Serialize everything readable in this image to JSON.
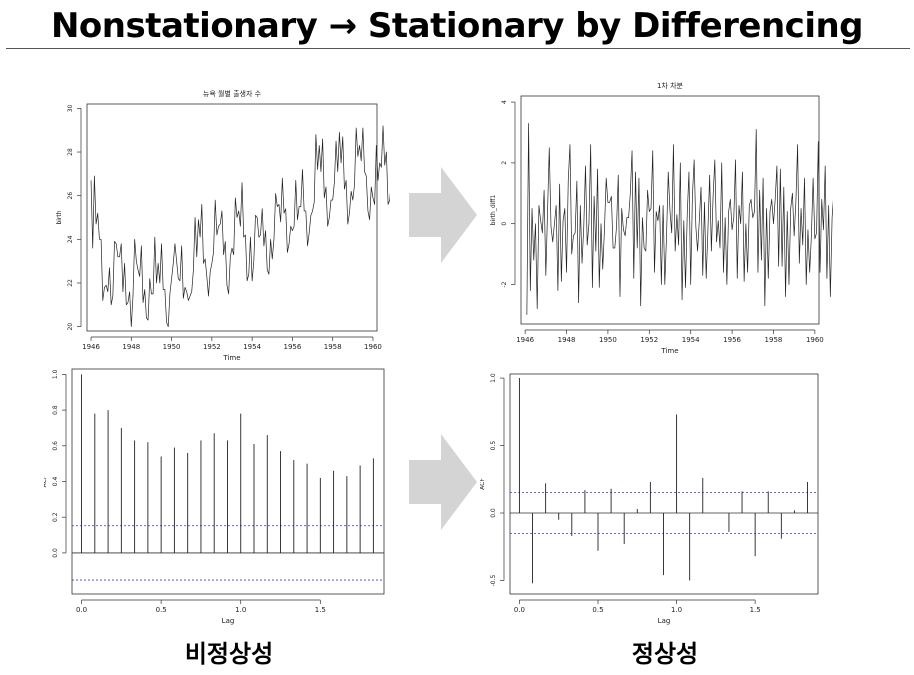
{
  "slide": {
    "title": "Nonstationary → Stationary by Differencing",
    "caption_left": "비정상성",
    "caption_right": "정상성"
  },
  "colors": {
    "series_line": "#222222",
    "ci_line": "#3b3bcc",
    "arrow_fill": "#d4d4d4",
    "frame": "#333333"
  },
  "chart_data": [
    {
      "id": "birth",
      "type": "line",
      "title": "뉴욕 월별 출생자 수",
      "xlabel": "Time",
      "ylabel": "birth",
      "xlim": [
        1945.8,
        1960.2
      ],
      "ylim": [
        19.8,
        30.2
      ],
      "xticks": [
        1946,
        1948,
        1950,
        1952,
        1954,
        1956,
        1958,
        1960
      ],
      "yticks": [
        20,
        22,
        24,
        26,
        28,
        30
      ],
      "x_start": 1946.0,
      "x_step": 0.08333,
      "series": [
        {
          "values": [
            26.7,
            23.6,
            26.9,
            24.7,
            25.2,
            24.0,
            24.0,
            21.2,
            21.8,
            21.9,
            21.6,
            22.7,
            21.0,
            21.4,
            23.9,
            23.8,
            23.2,
            23.2,
            23.8,
            21.6,
            22.9,
            21.0,
            21.1,
            21.6,
            20.0,
            21.4,
            24.0,
            23.0,
            22.6,
            22.3,
            23.7,
            21.1,
            21.7,
            20.4,
            20.3,
            22.2,
            21.5,
            21.5,
            24.1,
            22.0,
            22.9,
            22.0,
            23.8,
            21.7,
            21.7,
            20.2,
            20.0,
            21.5,
            22.2,
            22.9,
            23.8,
            23.0,
            22.2,
            22.1,
            23.7,
            21.3,
            21.8,
            21.6,
            21.2,
            21.4,
            21.6,
            22.6,
            25.0,
            23.2,
            24.9,
            24.1,
            25.6,
            22.9,
            23.1,
            22.3,
            21.4,
            22.5,
            22.9,
            23.4,
            25.8,
            24.2,
            24.6,
            24.7,
            25.3,
            23.3,
            23.9,
            21.9,
            21.5,
            23.2,
            23.6,
            23.3,
            25.9,
            25.0,
            25.3,
            24.6,
            26.6,
            24.1,
            24.2,
            22.1,
            22.4,
            24.1,
            22.1,
            23.0,
            25.1,
            25.0,
            24.1,
            24.2,
            25.4,
            23.7,
            24.4,
            22.6,
            22.4,
            24.0,
            23.1,
            24.0,
            26.1,
            25.5,
            25.6,
            24.8,
            26.8,
            25.2,
            25.4,
            23.4,
            23.8,
            24.6,
            24.4,
            24.6,
            26.7,
            24.9,
            25.5,
            25.5,
            27.2,
            25.3,
            25.3,
            23.7,
            24.3,
            25.1,
            25.3,
            25.7,
            28.8,
            27.2,
            28.3,
            27.1,
            28.6,
            25.9,
            26.4,
            24.6,
            25.0,
            25.8,
            25.8,
            26.6,
            28.5,
            27.1,
            28.9,
            27.5,
            28.7,
            26.3,
            26.7,
            24.7,
            25.2,
            26.2,
            25.8,
            26.5,
            29.1,
            27.8,
            28.3,
            27.6,
            29.1,
            27.1,
            26.9,
            25.3,
            24.9,
            26.4,
            25.9,
            25.6,
            28.3,
            26.7,
            27.5,
            27.3,
            29.2,
            27.4,
            28.0,
            25.6,
            25.8,
            26.8,
            26.1,
            27.1,
            29.9,
            28.3,
            28.3,
            27.2,
            29.1,
            26.9,
            27.2,
            26.3,
            26.0,
            26.9
          ]
        }
      ]
    },
    {
      "id": "birth_diff1",
      "type": "line",
      "title": "1차 차분",
      "xlabel": "Time",
      "ylabel": "birth_diff1",
      "xlim": [
        1945.8,
        1960.2
      ],
      "ylim": [
        -3.3,
        4.2
      ],
      "xticks": [
        1946,
        1948,
        1950,
        1952,
        1954,
        1956,
        1958,
        1960
      ],
      "yticks": [
        -2,
        0,
        2,
        4
      ],
      "x_start": 1946.083,
      "x_step": 0.08333,
      "series": [
        {
          "values": [
            -3.0,
            3.3,
            -2.2,
            0.5,
            -1.2,
            0.0,
            -2.8,
            0.6,
            0.1,
            -0.3,
            1.1,
            -1.7,
            0.4,
            2.5,
            -0.1,
            -0.6,
            0.0,
            0.6,
            -2.2,
            1.3,
            -1.9,
            0.1,
            0.5,
            -1.6,
            1.4,
            2.6,
            -1.0,
            -0.4,
            -0.3,
            1.4,
            -2.6,
            0.6,
            -1.3,
            -0.1,
            1.9,
            -0.7,
            0.0,
            2.6,
            -2.1,
            0.9,
            -0.9,
            1.8,
            -2.1,
            0.0,
            -1.5,
            -0.2,
            1.5,
            0.7,
            0.7,
            0.9,
            -0.8,
            -0.8,
            -0.1,
            1.6,
            -2.4,
            0.5,
            -0.2,
            -0.4,
            0.2,
            0.2,
            1.0,
            2.4,
            -1.8,
            1.7,
            -0.8,
            1.5,
            -2.7,
            0.2,
            -0.8,
            -0.9,
            1.1,
            0.4,
            0.5,
            2.4,
            -1.6,
            0.4,
            0.1,
            0.6,
            -2.0,
            0.6,
            -2.0,
            -0.4,
            1.7,
            0.4,
            -0.3,
            2.6,
            -0.9,
            0.3,
            -0.7,
            2.0,
            -2.5,
            0.1,
            -2.1,
            0.3,
            1.7,
            -2.0,
            0.9,
            2.1,
            -0.1,
            -0.9,
            0.1,
            1.2,
            -1.7,
            0.7,
            -1.8,
            -0.2,
            1.6,
            -0.9,
            0.9,
            2.1,
            -0.6,
            0.1,
            -0.8,
            2.0,
            -1.6,
            0.2,
            -2.0,
            0.4,
            0.8,
            -0.2,
            0.2,
            2.1,
            -1.8,
            0.6,
            0.0,
            1.7,
            -1.9,
            0.0,
            -1.6,
            0.6,
            0.8,
            0.2,
            0.4,
            3.1,
            -1.6,
            1.1,
            -1.2,
            1.5,
            -2.7,
            0.5,
            -1.8,
            0.4,
            0.8,
            0.0,
            0.8,
            1.9,
            -1.4,
            1.8,
            -1.4,
            1.2,
            -2.4,
            0.4,
            -2.0,
            0.5,
            1.0,
            -0.4,
            0.7,
            2.6,
            -1.3,
            0.5,
            -0.7,
            1.5,
            -2.0,
            -0.2,
            -1.6,
            -0.4,
            1.5,
            -0.5,
            -0.3,
            2.7,
            -1.6,
            0.8,
            -0.2,
            1.9,
            -1.8,
            0.6,
            -2.4,
            0.2,
            1.0,
            -0.7,
            1.0,
            2.8,
            -1.6,
            0.0,
            -1.1,
            1.9,
            -2.2,
            0.3,
            -0.9,
            -0.3,
            0.9
          ]
        }
      ]
    },
    {
      "id": "acf_birth",
      "type": "bar",
      "title": "",
      "xlabel": "Lag",
      "ylabel": "ACF",
      "xlim": [
        -0.06,
        1.9
      ],
      "ylim": [
        -0.23,
        1.03
      ],
      "xticks": [
        0.0,
        0.5,
        1.0,
        1.5
      ],
      "yticks": [
        0.0,
        0.2,
        0.4,
        0.6,
        0.8,
        1.0
      ],
      "confidence_bound": 0.152,
      "lags": [
        0.0,
        0.0833,
        0.1667,
        0.25,
        0.3333,
        0.4167,
        0.5,
        0.5833,
        0.6667,
        0.75,
        0.8333,
        0.9167,
        1.0,
        1.0833,
        1.1667,
        1.25,
        1.3333,
        1.4167,
        1.5,
        1.5833,
        1.6667,
        1.75,
        1.8333
      ],
      "values": [
        1.0,
        0.78,
        0.8,
        0.7,
        0.63,
        0.62,
        0.54,
        0.59,
        0.56,
        0.63,
        0.67,
        0.63,
        0.78,
        0.61,
        0.66,
        0.57,
        0.52,
        0.5,
        0.42,
        0.46,
        0.43,
        0.49,
        0.53
      ]
    },
    {
      "id": "acf_diff1",
      "type": "bar",
      "title": "",
      "xlabel": "Lag",
      "ylabel": "ACF",
      "xlim": [
        -0.06,
        1.9
      ],
      "ylim": [
        -0.6,
        1.03
      ],
      "xticks": [
        0.0,
        0.5,
        1.0,
        1.5
      ],
      "yticks": [
        -0.5,
        0.0,
        0.5,
        1.0
      ],
      "confidence_bound": 0.152,
      "lags": [
        0.0,
        0.0833,
        0.1667,
        0.25,
        0.3333,
        0.4167,
        0.5,
        0.5833,
        0.6667,
        0.75,
        0.8333,
        0.9167,
        1.0,
        1.0833,
        1.1667,
        1.25,
        1.3333,
        1.4167,
        1.5,
        1.5833,
        1.6667,
        1.75,
        1.8333
      ],
      "values": [
        1.0,
        -0.52,
        0.22,
        -0.05,
        -0.17,
        0.17,
        -0.28,
        0.18,
        -0.23,
        0.03,
        0.23,
        -0.46,
        0.73,
        -0.5,
        0.26,
        0.0,
        -0.14,
        0.16,
        -0.32,
        0.16,
        -0.19,
        0.02,
        0.23
      ]
    }
  ]
}
